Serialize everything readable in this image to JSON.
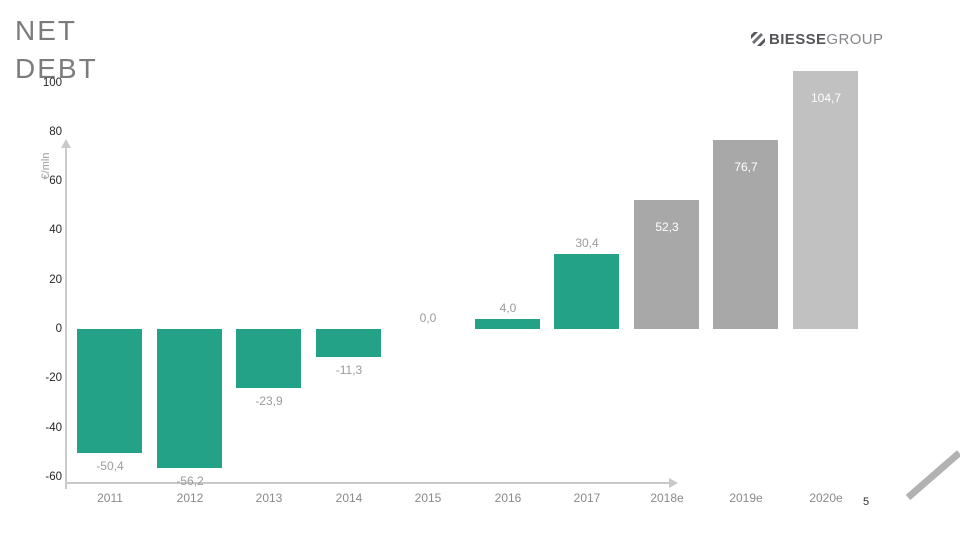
{
  "header": {
    "title": "NET DEBT",
    "logo": {
      "bold": "BIESSE",
      "light": "GROUP",
      "icon": "biesse-hatched-square"
    }
  },
  "chart_data": {
    "type": "bar",
    "title": "NET DEBT",
    "xlabel": "",
    "ylabel": "€/mln",
    "categories": [
      "2011",
      "2012",
      "2013",
      "2014",
      "2015",
      "2016",
      "2017",
      "2018e",
      "2019e",
      "2020e"
    ],
    "values": [
      -50.4,
      -56.2,
      -23.9,
      -11.3,
      0.0,
      4.0,
      30.4,
      52.3,
      76.7,
      104.7
    ],
    "value_labels": [
      "-50,4",
      "-56,2",
      "-23,9",
      "-11,3",
      "0,0",
      "4,0",
      "30,4",
      "52,3",
      "76,7",
      "104,7"
    ],
    "bar_colors": [
      "#23A287",
      "#23A287",
      "#23A287",
      "#23A287",
      "#23A287",
      "#23A287",
      "#23A287",
      "#A8A8A8",
      "#A8A8A8",
      "#C1C1C1"
    ],
    "label_positions": [
      "below",
      "below",
      "below",
      "below",
      "above",
      "above",
      "above",
      "inside",
      "inside",
      "inside"
    ],
    "yticks": [
      100,
      80,
      60,
      40,
      20,
      0,
      -20,
      -40,
      -60
    ],
    "ytick_labels": [
      "100",
      "80",
      "60",
      "40",
      "20",
      "0",
      "-20",
      "-40",
      "-60"
    ],
    "ylim": [
      -60,
      100
    ],
    "grid": false,
    "legend": false
  },
  "footer": {
    "page_number": "5"
  },
  "colors": {
    "bar_actual": "#23A287",
    "bar_estimate": "#A8A8A8",
    "bar_estimate_far": "#C1C1C1",
    "axis_line": "#C9C9C9",
    "value_label": "#9B9B9B",
    "value_label_inside": "#FFFFFF",
    "xtick_label": "#8A8A8A",
    "ytick_label": "#262626",
    "title": "#7C7C7C"
  }
}
